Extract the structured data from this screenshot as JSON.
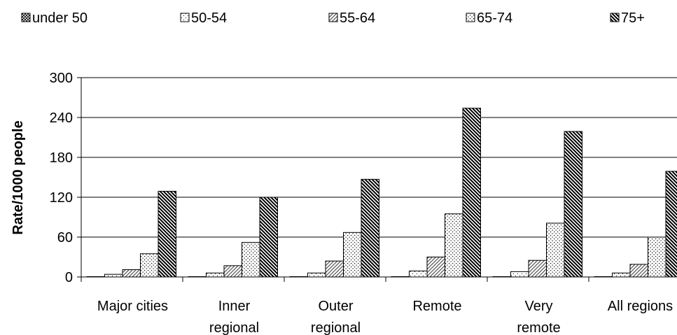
{
  "chart_data": {
    "type": "bar",
    "title": "",
    "xlabel": "",
    "ylabel": "Rate/1000 people",
    "ylim": [
      0,
      300
    ],
    "yticks": [
      0,
      60,
      120,
      180,
      240,
      300
    ],
    "grid": true,
    "legend_position": "top",
    "categories": [
      [
        "Major cities"
      ],
      [
        "Inner",
        "regional"
      ],
      [
        "Outer",
        "regional"
      ],
      [
        "Remote"
      ],
      [
        "Very",
        "remote"
      ],
      [
        "All regions"
      ]
    ],
    "series": [
      {
        "name": "under 50",
        "pattern": "crosshatch",
        "values": [
          0.5,
          0.5,
          0.5,
          0.5,
          0.5,
          0.5
        ]
      },
      {
        "name": "50-54",
        "pattern": "sparse-dots",
        "values": [
          4,
          6,
          6,
          9,
          8,
          6
        ]
      },
      {
        "name": "55-64",
        "pattern": "diagonal-light",
        "values": [
          11,
          17,
          24,
          30,
          25,
          19
        ]
      },
      {
        "name": "65-74",
        "pattern": "dots",
        "values": [
          35,
          52,
          67,
          95,
          81,
          60
        ]
      },
      {
        "name": "75+",
        "pattern": "diagonal-dense",
        "values": [
          129,
          120,
          147,
          254,
          219,
          159
        ]
      }
    ]
  }
}
